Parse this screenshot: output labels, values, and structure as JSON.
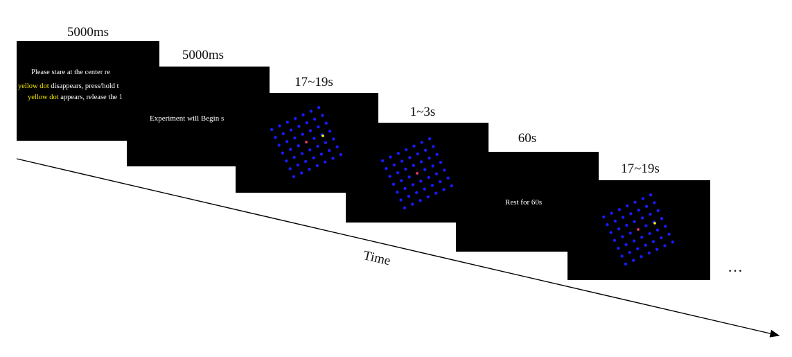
{
  "screens": [
    {
      "duration": "5000ms",
      "lines": [
        [
          {
            "text": "Please stare at the center re",
            "color": "white"
          }
        ],
        [
          {
            "text": "yellow dot",
            "color": "yellow"
          },
          {
            "text": " disappears, press/hold t",
            "color": "white"
          }
        ],
        [
          {
            "text": "yellow dot",
            "color": "yellow"
          },
          {
            "text": " appears, release the 1",
            "color": "white"
          }
        ]
      ]
    },
    {
      "duration": "5000ms",
      "text": "Experiment will Begin s"
    },
    {
      "duration": "17~19s",
      "content": "dot-grid",
      "fixation_color": "#ff3b1a",
      "target_color": "#ffff00",
      "grid_color": "#1a1aff",
      "has_yellow_dot": true
    },
    {
      "duration": "1~3s",
      "content": "dot-grid",
      "fixation_color": "#ff3b1a",
      "grid_color": "#1a1aff",
      "has_yellow_dot": false
    },
    {
      "duration": "60s",
      "text": "Rest for 60s"
    },
    {
      "duration": "17~19s",
      "content": "dot-grid",
      "fixation_color": "#ff3b1a",
      "target_color": "#ffff00",
      "grid_color": "#1a1aff",
      "has_yellow_dot": true
    }
  ],
  "timeline": {
    "axis_label": "Time",
    "continuation": "…"
  }
}
